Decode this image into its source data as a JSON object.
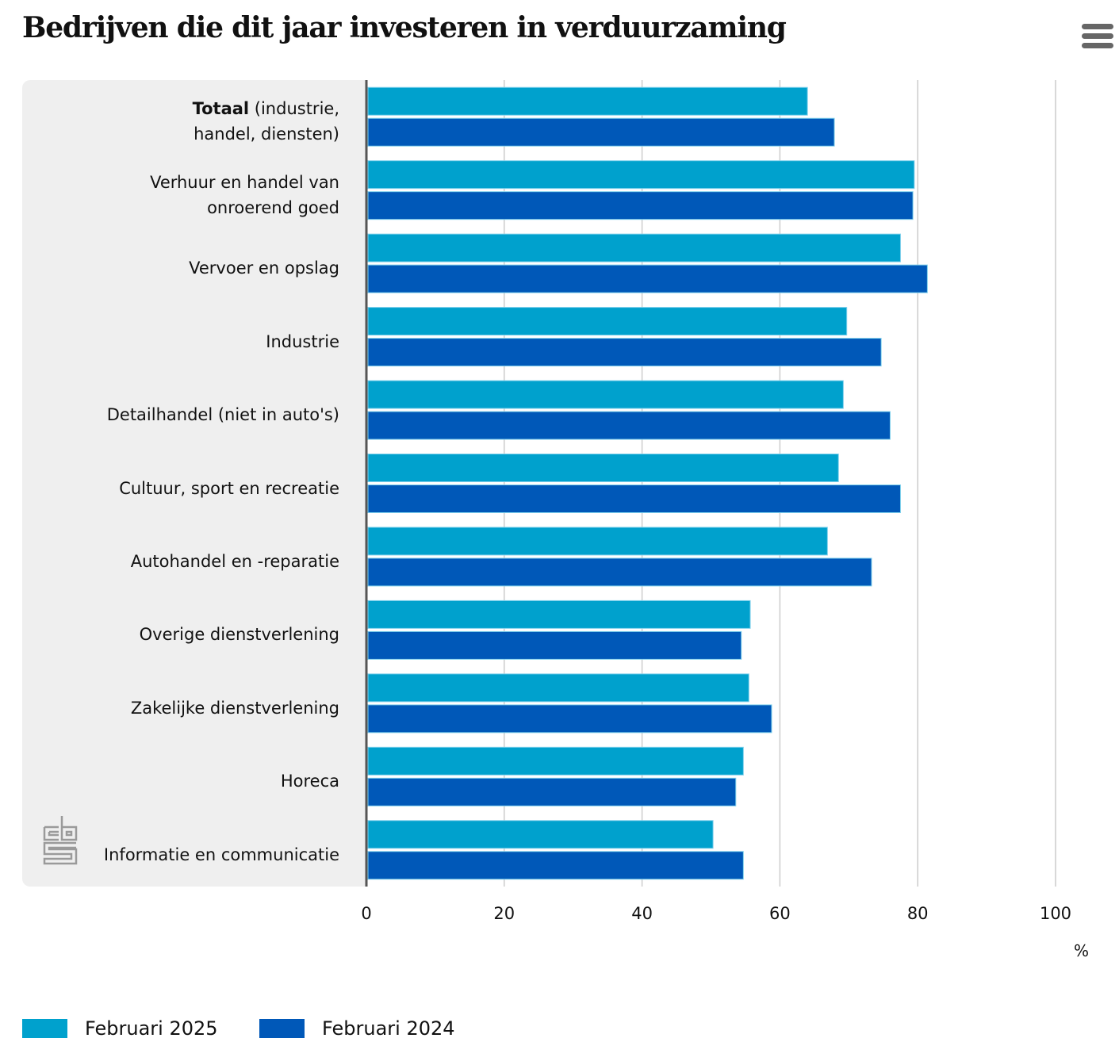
{
  "header": {
    "title": "Bedrijven die dit jaar investeren in verduurzaming",
    "menu_icon": "hamburger-menu-icon"
  },
  "logo": {
    "icon": "cbs-logo-icon"
  },
  "chart_data": {
    "type": "bar",
    "orientation": "horizontal",
    "title": "Bedrijven die dit jaar investeren in verduurzaming",
    "xlabel": "%",
    "ylabel": "",
    "xlim": [
      0,
      100
    ],
    "xticks": [
      0,
      20,
      40,
      60,
      80,
      100
    ],
    "xtick_labels": [
      "0",
      "20",
      "40",
      "60",
      "80",
      "100"
    ],
    "grid": true,
    "legend_position": "bottom-left",
    "categories": [
      {
        "bold": "Totaal",
        "rest": " (industrie,\nhandel, diensten)"
      },
      {
        "bold": "",
        "rest": "Verhuur en handel van\nonroerend goed"
      },
      {
        "bold": "",
        "rest": "Vervoer en opslag"
      },
      {
        "bold": "",
        "rest": "Industrie"
      },
      {
        "bold": "",
        "rest": "Detailhandel (niet in auto's)"
      },
      {
        "bold": "",
        "rest": "Cultuur, sport en recreatie"
      },
      {
        "bold": "",
        "rest": "Autohandel en -reparatie"
      },
      {
        "bold": "",
        "rest": "Overige dienstverlening"
      },
      {
        "bold": "",
        "rest": "Zakelijke dienstverlening"
      },
      {
        "bold": "",
        "rest": "Horeca"
      },
      {
        "bold": "",
        "rest": "Informatie en communicatie"
      }
    ],
    "series": [
      {
        "name": "Februari 2025",
        "color": "#00a1cd",
        "values": [
          64.0,
          79.5,
          77.5,
          69.7,
          69.2,
          68.5,
          66.9,
          55.7,
          55.5,
          54.7,
          50.3
        ]
      },
      {
        "name": "Februari 2024",
        "color": "#0058b8",
        "values": [
          67.9,
          79.3,
          81.4,
          74.7,
          76.0,
          77.5,
          73.3,
          54.4,
          58.8,
          53.6,
          54.7
        ]
      }
    ]
  }
}
